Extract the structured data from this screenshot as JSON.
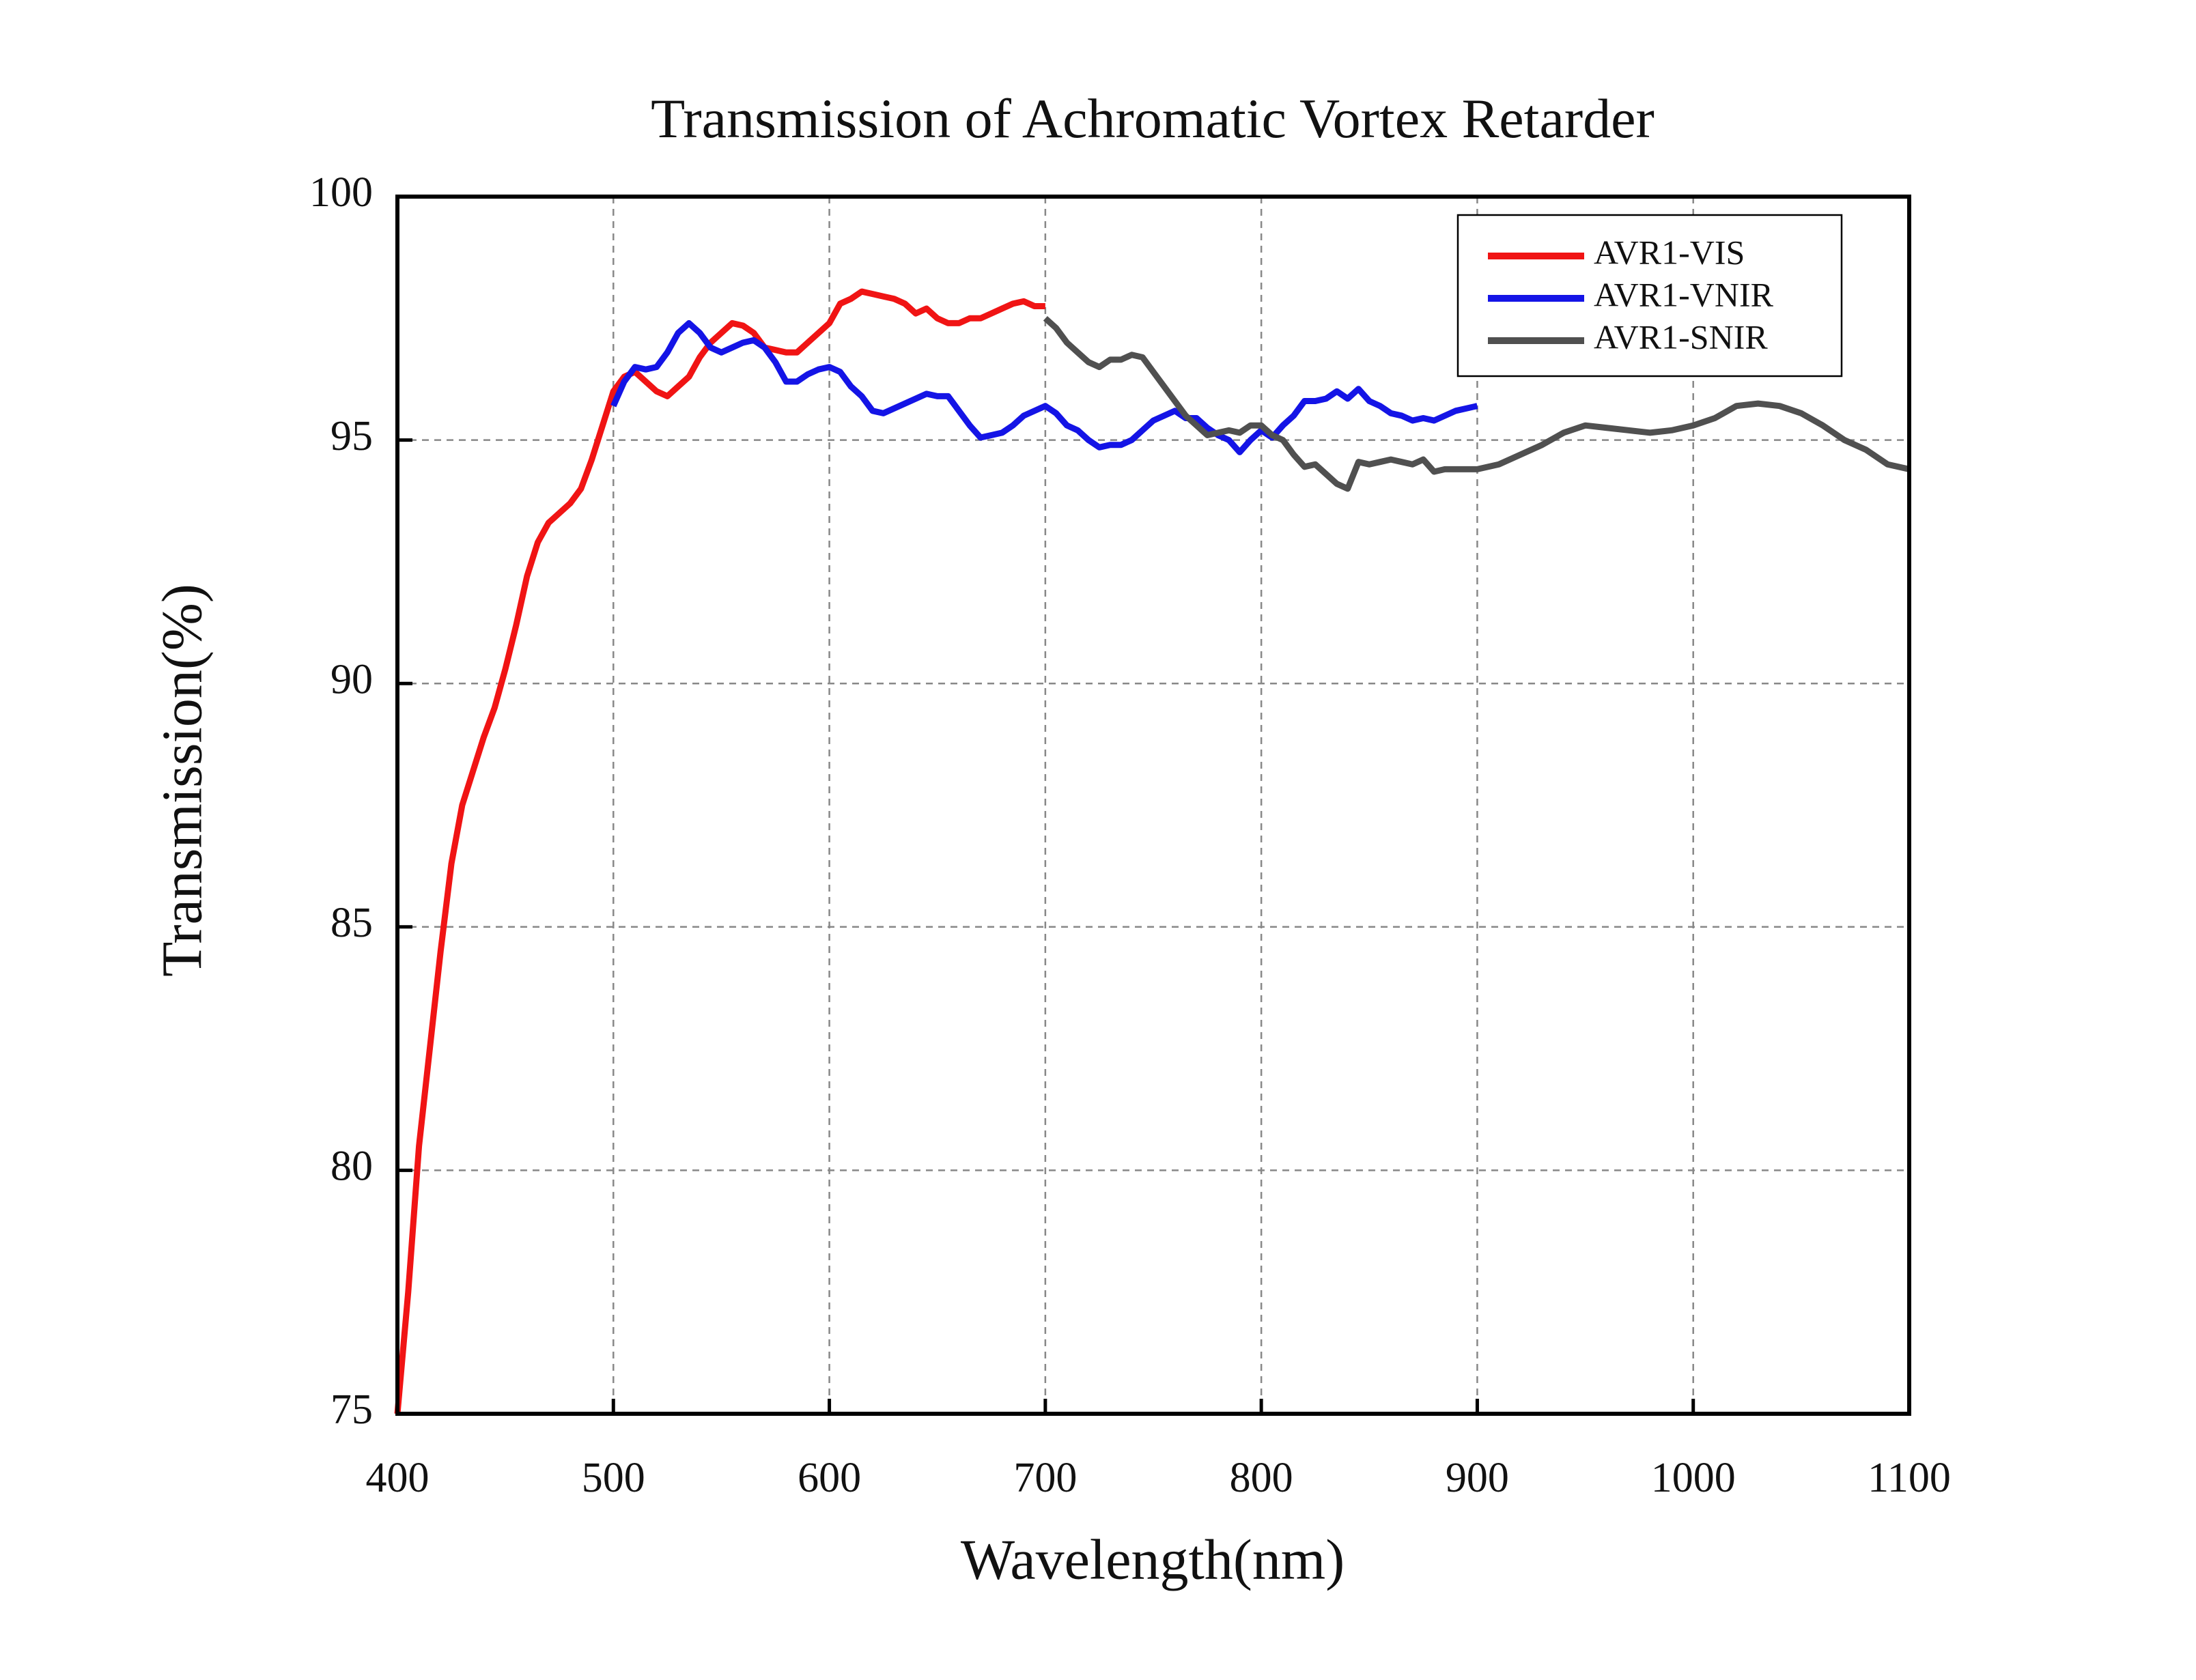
{
  "chart_data": {
    "type": "line",
    "title": "Transmission of Achromatic Vortex Retarder",
    "x_label": "Wavelength(nm)",
    "y_label": "Transmission(%)",
    "xlim": [
      400,
      1100
    ],
    "xticks": [
      400,
      500,
      600,
      700,
      800,
      900,
      1000,
      1100
    ],
    "ylim": [
      75,
      100
    ],
    "yticks": [
      75,
      80,
      85,
      90,
      95,
      100
    ],
    "grid": true,
    "legend": "top-right",
    "series": [
      {
        "name": "AVR1-VIS",
        "color": "#f01414",
        "x": [
          400,
          405,
          410,
          415,
          420,
          425,
          430,
          435,
          440,
          445,
          450,
          455,
          460,
          465,
          470,
          475,
          480,
          485,
          490,
          495,
          500,
          505,
          510,
          515,
          520,
          525,
          530,
          535,
          540,
          545,
          550,
          555,
          560,
          565,
          570,
          575,
          580,
          585,
          590,
          595,
          600,
          605,
          610,
          615,
          620,
          625,
          630,
          635,
          640,
          645,
          650,
          655,
          660,
          665,
          670,
          675,
          680,
          685,
          690,
          695,
          700
        ],
        "values": [
          75.0,
          77.5,
          80.5,
          82.5,
          84.5,
          86.3,
          87.5,
          88.2,
          88.9,
          89.5,
          90.3,
          91.2,
          92.2,
          92.9,
          93.3,
          93.5,
          93.7,
          94.0,
          94.6,
          95.3,
          96.0,
          96.3,
          96.4,
          96.2,
          96.0,
          95.9,
          96.1,
          96.3,
          96.7,
          97.0,
          97.2,
          97.4,
          97.35,
          97.2,
          96.9,
          96.85,
          96.8,
          96.8,
          97.0,
          97.2,
          97.4,
          97.8,
          97.9,
          98.05,
          98.0,
          97.95,
          97.9,
          97.8,
          97.6,
          97.7,
          97.5,
          97.4,
          97.4,
          97.5,
          97.5,
          97.6,
          97.7,
          97.8,
          97.85,
          97.75,
          97.75
        ]
      },
      {
        "name": "AVR1-VNIR",
        "color": "#1414e6",
        "x": [
          500,
          505,
          510,
          515,
          520,
          525,
          530,
          535,
          540,
          545,
          550,
          555,
          560,
          565,
          570,
          575,
          580,
          585,
          590,
          595,
          600,
          605,
          610,
          615,
          620,
          625,
          630,
          635,
          640,
          645,
          650,
          655,
          660,
          665,
          670,
          675,
          680,
          685,
          690,
          695,
          700,
          705,
          710,
          715,
          720,
          725,
          730,
          735,
          740,
          745,
          750,
          755,
          760,
          765,
          770,
          775,
          780,
          785,
          790,
          795,
          800,
          805,
          810,
          815,
          820,
          825,
          830,
          835,
          840,
          845,
          850,
          855,
          860,
          865,
          870,
          875,
          880,
          885,
          890,
          895,
          900
        ],
        "values": [
          95.7,
          96.2,
          96.5,
          96.45,
          96.5,
          96.8,
          97.2,
          97.4,
          97.2,
          96.9,
          96.8,
          96.9,
          97.0,
          97.05,
          96.9,
          96.6,
          96.2,
          96.2,
          96.35,
          96.45,
          96.5,
          96.4,
          96.1,
          95.9,
          95.6,
          95.55,
          95.65,
          95.75,
          95.85,
          95.95,
          95.9,
          95.9,
          95.6,
          95.3,
          95.05,
          95.1,
          95.15,
          95.3,
          95.5,
          95.6,
          95.7,
          95.55,
          95.3,
          95.2,
          95.0,
          94.85,
          94.9,
          94.9,
          95.0,
          95.2,
          95.4,
          95.5,
          95.6,
          95.45,
          95.45,
          95.25,
          95.1,
          95.0,
          94.75,
          95.0,
          95.2,
          95.05,
          95.3,
          95.5,
          95.8,
          95.8,
          95.85,
          96.0,
          95.85,
          96.05,
          95.8,
          95.7,
          95.55,
          95.5,
          95.4,
          95.45,
          95.4,
          95.5,
          95.6,
          95.65,
          95.7
        ]
      },
      {
        "name": "AVR1-SNIR",
        "color": "#505050",
        "x": [
          700,
          705,
          710,
          715,
          720,
          725,
          730,
          735,
          740,
          745,
          750,
          755,
          760,
          765,
          770,
          775,
          780,
          785,
          790,
          795,
          800,
          805,
          810,
          815,
          820,
          825,
          830,
          835,
          840,
          845,
          850,
          855,
          860,
          865,
          870,
          875,
          880,
          885,
          890,
          895,
          900,
          910,
          920,
          930,
          940,
          950,
          960,
          970,
          980,
          990,
          1000,
          1010,
          1020,
          1030,
          1040,
          1050,
          1060,
          1070,
          1080,
          1090,
          1100
        ],
        "values": [
          97.5,
          97.3,
          97.0,
          96.8,
          96.6,
          96.5,
          96.65,
          96.65,
          96.75,
          96.7,
          96.4,
          96.1,
          95.8,
          95.5,
          95.3,
          95.1,
          95.15,
          95.2,
          95.15,
          95.3,
          95.3,
          95.1,
          95.0,
          94.7,
          94.45,
          94.5,
          94.3,
          94.1,
          94.0,
          94.55,
          94.5,
          94.55,
          94.6,
          94.55,
          94.5,
          94.6,
          94.35,
          94.4,
          94.4,
          94.4,
          94.4,
          94.5,
          94.7,
          94.9,
          95.15,
          95.3,
          95.25,
          95.2,
          95.15,
          95.2,
          95.3,
          95.45,
          95.7,
          95.75,
          95.7,
          95.55,
          95.3,
          95.0,
          94.8,
          94.5,
          94.4
        ]
      }
    ]
  }
}
